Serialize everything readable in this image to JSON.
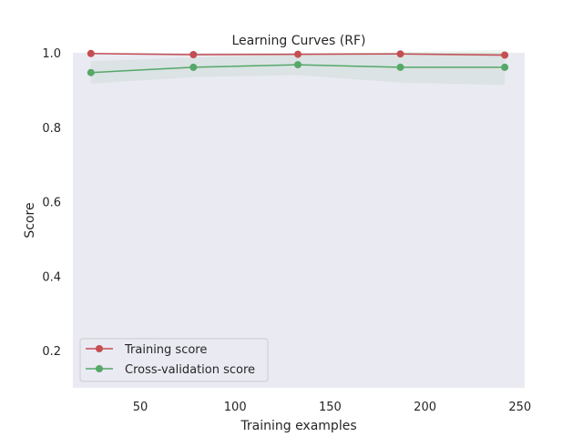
{
  "chart_data": {
    "type": "line",
    "title": "Learning Curves (RF)",
    "xlabel": "Training examples",
    "ylabel": "Score",
    "xlim": [
      14.5,
      252.5
    ],
    "ylim": [
      0.1,
      1.0
    ],
    "xticks": [
      50,
      100,
      150,
      200,
      250
    ],
    "yticks": [
      0.2,
      0.4,
      0.6,
      0.8,
      1.0
    ],
    "xtick_labels": [
      "50",
      "100",
      "150",
      "200",
      "250"
    ],
    "ytick_labels": [
      "0.2",
      "0.4",
      "0.6",
      "0.8",
      "1.0"
    ],
    "x": [
      24,
      78,
      133,
      187,
      242
    ],
    "grid": false,
    "legend_position": "lower-left",
    "background": "#eaeaf2",
    "series": [
      {
        "name": "Training score",
        "color": "#c44e52",
        "values": [
          0.998,
          0.995,
          0.996,
          0.997,
          0.994
        ],
        "band_lower": [
          0.997,
          0.993,
          0.994,
          0.995,
          0.99
        ],
        "band_upper": [
          0.999,
          0.997,
          0.998,
          0.999,
          0.998
        ]
      },
      {
        "name": "Cross-validation score",
        "color": "#55a868",
        "values": [
          0.947,
          0.961,
          0.968,
          0.961,
          0.961
        ],
        "band_lower": [
          0.917,
          0.935,
          0.94,
          0.92,
          0.914
        ],
        "band_upper": [
          0.977,
          0.987,
          0.996,
          1.002,
          1.008
        ]
      }
    ]
  }
}
